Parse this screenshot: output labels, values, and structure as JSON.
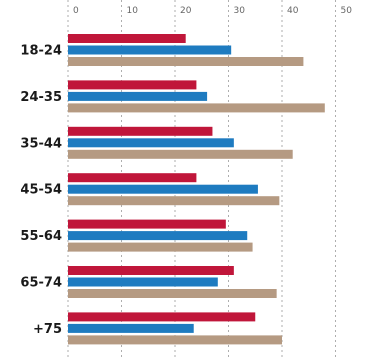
{
  "chart_data": {
    "type": "bar",
    "orientation": "horizontal",
    "categories": [
      "18-24",
      "24-35",
      "35-44",
      "45-54",
      "55-64",
      "65-74",
      "+75"
    ],
    "series": [
      {
        "color": "#c0163a",
        "values": [
          22,
          24,
          27,
          24,
          29.5,
          31,
          35
        ]
      },
      {
        "color": "#1e7bc0",
        "values": [
          30.5,
          26,
          31,
          35.5,
          33.5,
          28,
          23.5
        ]
      },
      {
        "color": "#b59a82",
        "values": [
          44,
          48,
          42,
          39.5,
          34.5,
          39,
          40
        ]
      }
    ],
    "xlim": [
      0,
      50
    ],
    "xticks": [
      "0",
      "10",
      "20",
      "30",
      "40",
      "50"
    ],
    "grid": true,
    "legend": "none"
  }
}
